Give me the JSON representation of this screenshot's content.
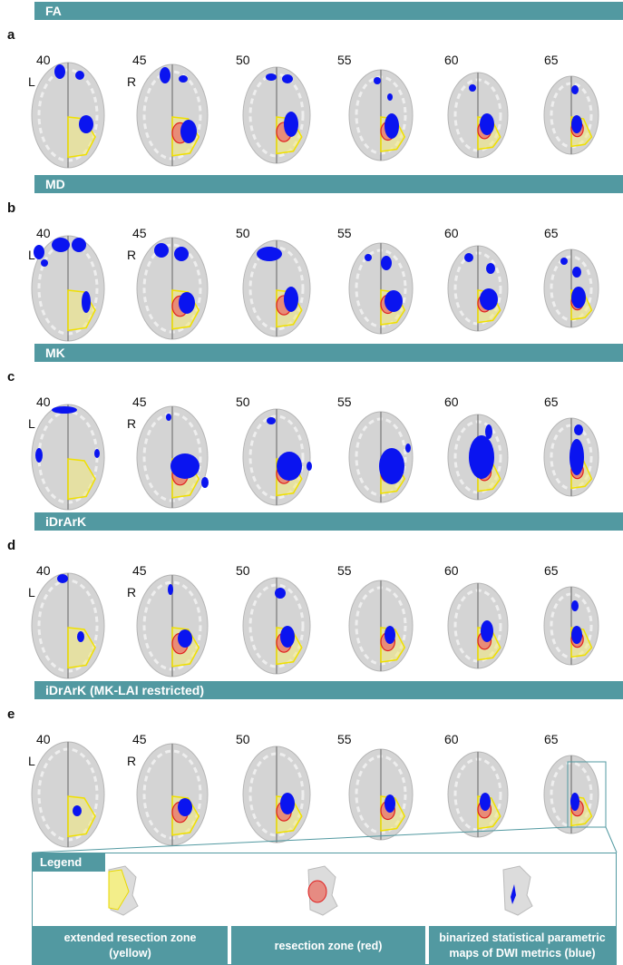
{
  "panels": [
    {
      "letter": "a",
      "title": "FA"
    },
    {
      "letter": "b",
      "title": "MD"
    },
    {
      "letter": "c",
      "title": "MK"
    },
    {
      "letter": "d",
      "title": "iDrArK"
    },
    {
      "letter": "e",
      "title": "iDrArK (MK-LAI restricted)"
    }
  ],
  "slices": [
    "40",
    "45",
    "50",
    "55",
    "60",
    "65"
  ],
  "orientation": {
    "left": "L",
    "right": "R"
  },
  "legend": {
    "title": "Legend",
    "items": [
      {
        "label_1": "extended resection zone",
        "label_2": "(yellow)",
        "color": "#f3ee8a"
      },
      {
        "label_1": "resection zone (red)",
        "label_2": "",
        "color": "#e8776b"
      },
      {
        "label_1": "binarized statistical parametric",
        "label_2": "maps of DWI metrics (blue)",
        "color": "#0a14f0"
      }
    ]
  },
  "colors": {
    "header": "#5299a1",
    "blue": "#0a14f0",
    "yellow": "#f2ea7a",
    "red": "#e02020"
  }
}
